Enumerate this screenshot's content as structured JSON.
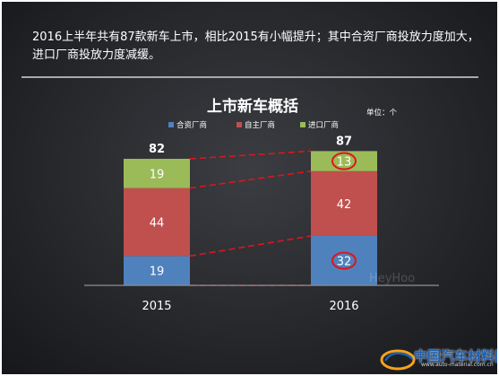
{
  "headline": "2016上半年共有87款新车上市，相比2015有小幅提升；其中合资厂商投放力度加大，进口厂商投放力度减缓。",
  "chart_data": {
    "type": "bar",
    "stacked": true,
    "title": "上市新车概括",
    "unit_label": "单位：个",
    "categories": [
      "2015",
      "2016"
    ],
    "series": [
      {
        "name": "合资厂商",
        "color": "#4f81bd",
        "values": [
          19,
          32
        ]
      },
      {
        "name": "自主厂商",
        "color": "#c0504d",
        "values": [
          44,
          42
        ]
      },
      {
        "name": "进口厂商",
        "color": "#9bbb59",
        "values": [
          19,
          13
        ]
      }
    ],
    "totals": [
      82,
      87
    ],
    "ylim": [
      0,
      100
    ],
    "legend_position": "top",
    "annotations": [
      "2016 进口厂商 13 circled in red",
      "2016 合资厂商 32 circled in red",
      "red dashed connector lines between series boundaries"
    ]
  },
  "watermark": "HeyHoo",
  "logo": {
    "name": "中国汽车材料网",
    "url": "www.auto-material.com.cn"
  },
  "colors": {
    "accent_red": "#e0141c",
    "grid_line": "#9c9ea1"
  }
}
